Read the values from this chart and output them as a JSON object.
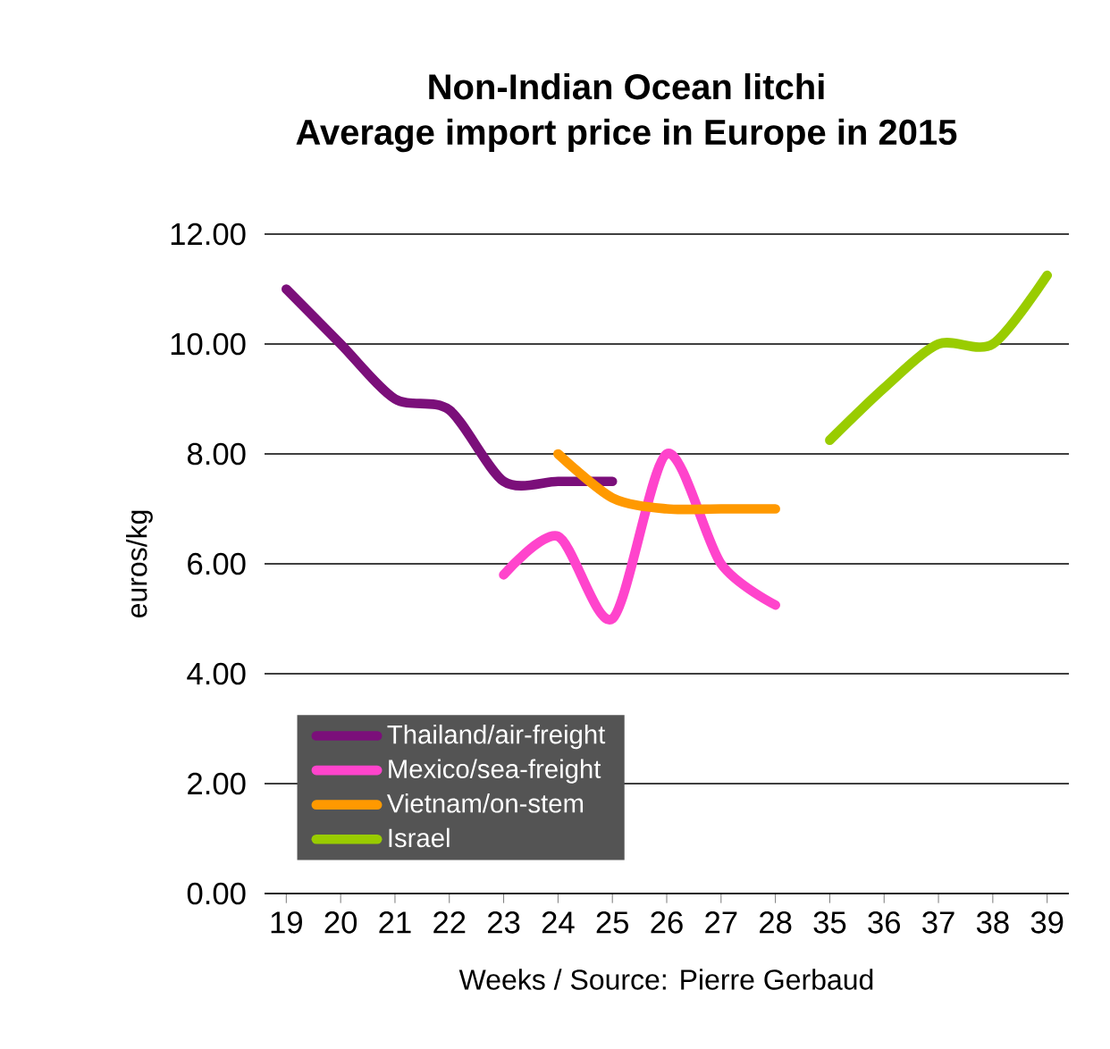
{
  "chart_data": {
    "type": "line",
    "title": "Non-Indian Ocean litchi\nAverage import price in Europe in 2015",
    "xlabel": "Weeks / Source: Pierre Gerbaud",
    "ylabel": "euros/kg",
    "categories": [
      "19",
      "20",
      "21",
      "22",
      "23",
      "24",
      "25",
      "26",
      "27",
      "28",
      "35",
      "36",
      "37",
      "38",
      "39"
    ],
    "series": [
      {
        "name": "Thailand/air-freight",
        "color": "#7b0f7a",
        "values": [
          11.0,
          10.0,
          9.0,
          8.8,
          7.5,
          7.5,
          7.5,
          null,
          null,
          null,
          null,
          null,
          null,
          null,
          null
        ]
      },
      {
        "name": "Mexico/sea-freight",
        "color": "#ff44cc",
        "values": [
          null,
          null,
          null,
          null,
          5.8,
          6.5,
          5.0,
          8.0,
          6.0,
          5.25,
          null,
          null,
          null,
          null,
          null
        ]
      },
      {
        "name": "Vietnam/on-stem",
        "color": "#ff9900",
        "values": [
          null,
          null,
          null,
          null,
          null,
          8.0,
          7.2,
          7.0,
          7.0,
          7.0,
          null,
          null,
          null,
          null,
          null
        ]
      },
      {
        "name": "Israel",
        "color": "#99cc00",
        "values": [
          null,
          null,
          null,
          null,
          null,
          null,
          null,
          null,
          null,
          null,
          8.25,
          9.2,
          10.0,
          10.0,
          11.25
        ]
      }
    ],
    "ylim": [
      0,
      12
    ],
    "yticks": [
      {
        "value": 0,
        "label": "0.00"
      },
      {
        "value": 2,
        "label": "2.00"
      },
      {
        "value": 4,
        "label": "4.00"
      },
      {
        "value": 6,
        "label": "6.00"
      },
      {
        "value": 8,
        "label": "8.00"
      },
      {
        "value": 10,
        "label": "10.00"
      },
      {
        "value": 12,
        "label": "12.00"
      }
    ],
    "grid": "y",
    "legend": "bottom left",
    "marker": "none",
    "line_style": "solid"
  }
}
